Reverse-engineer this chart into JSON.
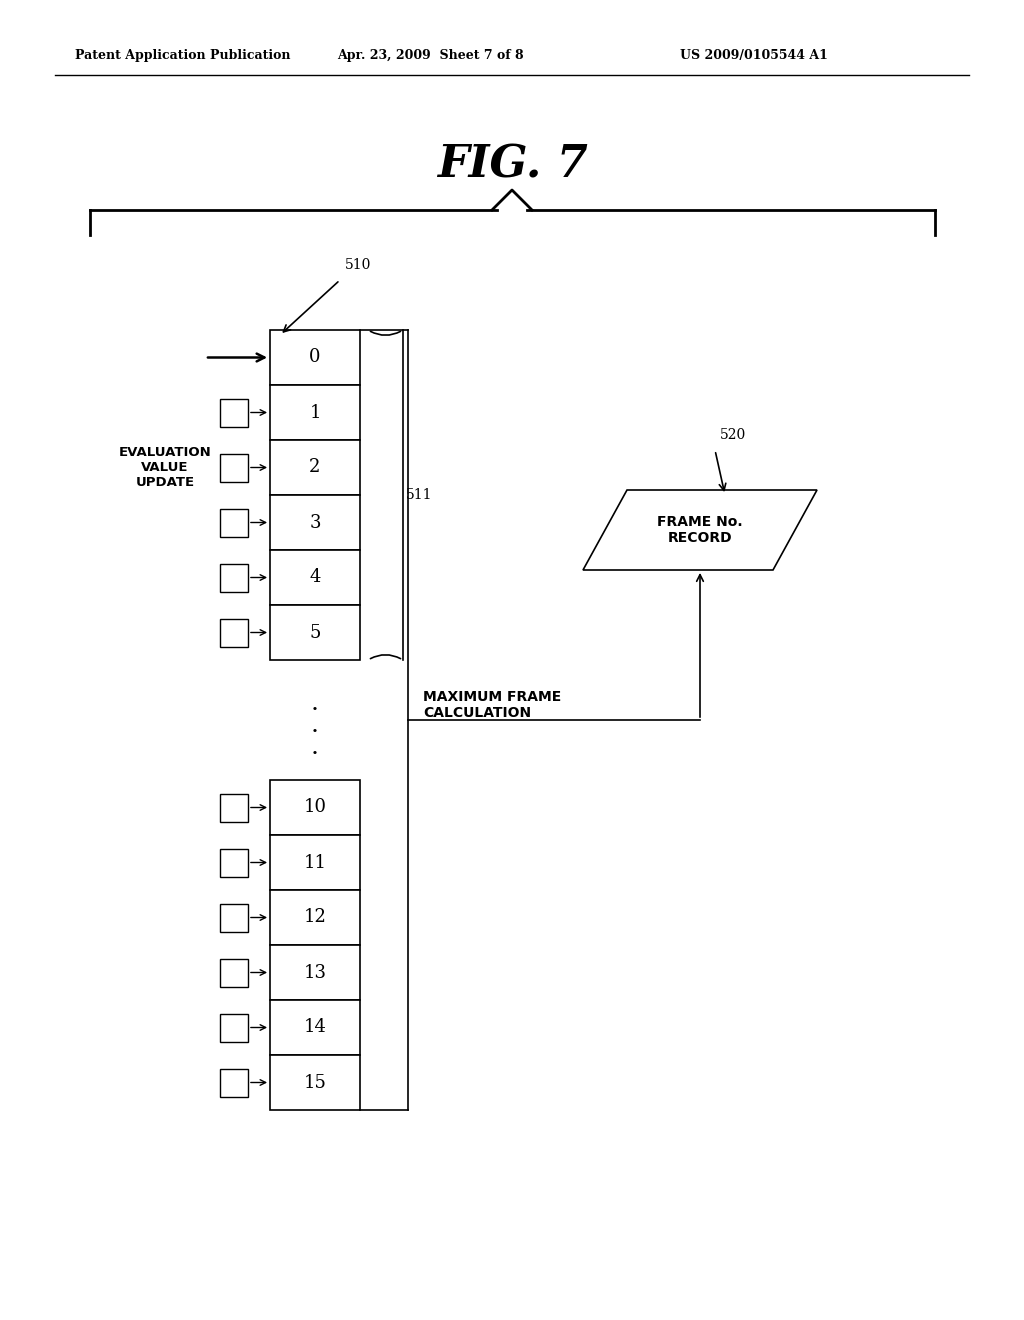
{
  "bg_color": "#ffffff",
  "header_left": "Patent Application Publication",
  "header_mid": "Apr. 23, 2009  Sheet 7 of 8",
  "header_right": "US 2009/0105544 A1",
  "fig_title": "FIG. 7",
  "label_510": "510",
  "label_511": "511",
  "label_520": "520",
  "eval_label": "EVALUATION\nVALUE\nUPDATE",
  "max_frame_label": "MAXIMUM FRAME\nCALCULATION",
  "frame_no_label": "FRAME No.\nRECORD",
  "frames_top": [
    0,
    1,
    2,
    3,
    4,
    5
  ],
  "frames_bottom": [
    10,
    11,
    12,
    13,
    14,
    15
  ],
  "fig_w": 1024,
  "fig_h": 1320
}
